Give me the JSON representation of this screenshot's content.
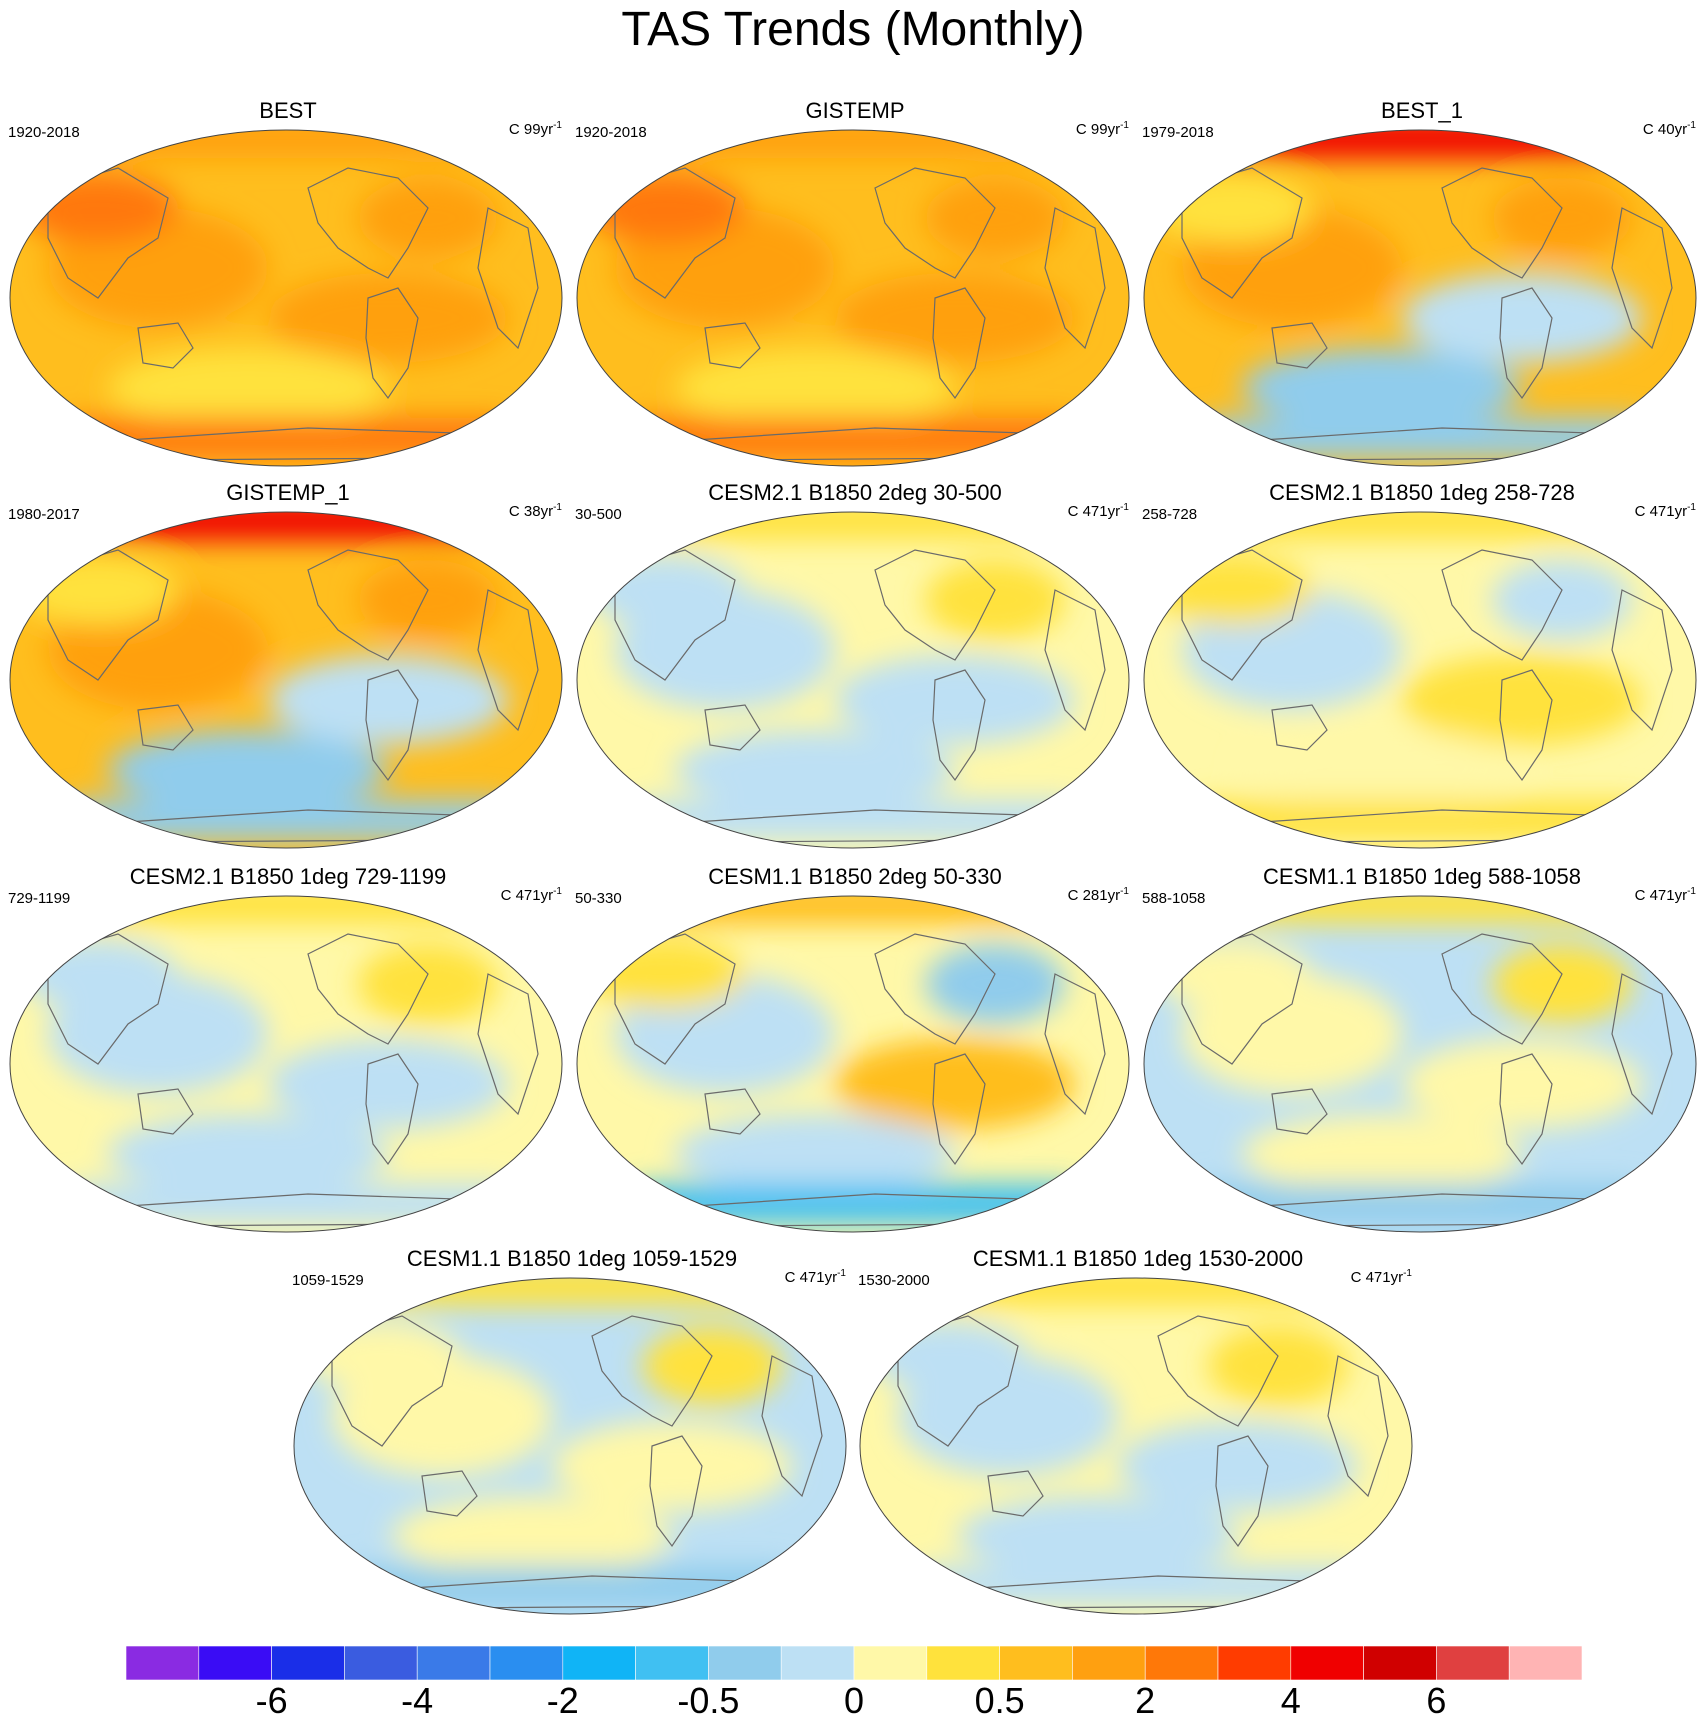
{
  "title": "TAS Trends (Monthly)",
  "panels": [
    {
      "title": "BEST",
      "years": "1920-2018",
      "units_prefix": "C 99yr",
      "units_sup": "-1",
      "theme": "warm"
    },
    {
      "title": "GISTEMP",
      "years": "1920-2018",
      "units_prefix": "C 99yr",
      "units_sup": "-1",
      "theme": "warm"
    },
    {
      "title": "BEST_1",
      "years": "1979-2018",
      "units_prefix": "C 40yr",
      "units_sup": "-1",
      "theme": "warm-arctic"
    },
    {
      "title": "GISTEMP_1",
      "years": "1980-2017",
      "units_prefix": "C 38yr",
      "units_sup": "-1",
      "theme": "warm-arctic"
    },
    {
      "title": "CESM2.1 B1850 2deg 30-500",
      "years": "30-500",
      "units_prefix": "C 471yr",
      "units_sup": "-1",
      "theme": "neutral"
    },
    {
      "title": "CESM2.1 B1850 1deg 258-728",
      "years": "258-728",
      "units_prefix": "C 471yr",
      "units_sup": "-1",
      "theme": "neutral-yellow"
    },
    {
      "title": "CESM2.1 B1850 1deg 729-1199",
      "years": "729-1199",
      "units_prefix": "C 471yr",
      "units_sup": "-1",
      "theme": "neutral"
    },
    {
      "title": "CESM1.1 B1850 2deg 50-330",
      "years": "50-330",
      "units_prefix": "C 281yr",
      "units_sup": "-1",
      "theme": "neutral-mixed"
    },
    {
      "title": "CESM1.1 B1850 1deg 588-1058",
      "years": "588-1058",
      "units_prefix": "C 471yr",
      "units_sup": "-1",
      "theme": "neutral-blue"
    },
    {
      "title": "CESM1.1 B1850 1deg 1059-1529",
      "years": "1059-1529",
      "units_prefix": "C 471yr",
      "units_sup": "-1",
      "theme": "neutral-blue"
    },
    {
      "title": "CESM1.1 B1850 1deg 1530-2000",
      "years": "1530-2000",
      "units_prefix": "C 471yr",
      "units_sup": "-1",
      "theme": "neutral"
    }
  ],
  "colorbar": {
    "colors": [
      "#8a2be2",
      "#3a0cf5",
      "#1a2ee8",
      "#3a5ce0",
      "#3a7ae8",
      "#2a8ef0",
      "#10b4f6",
      "#40c0f2",
      "#90ccec",
      "#bde0f4",
      "#fff8a8",
      "#ffe23c",
      "#ffbe1e",
      "#ffa010",
      "#ff7808",
      "#ff3c00",
      "#f00000",
      "#d00000",
      "#e04040",
      "#ffb4b4"
    ],
    "labels": [
      "-6",
      "-4",
      "-2",
      "-0.5",
      "0",
      "0.5",
      "2",
      "4",
      "6"
    ],
    "label_boundaries": [
      2,
      4,
      6,
      8,
      10,
      12,
      14,
      16,
      18
    ]
  }
}
